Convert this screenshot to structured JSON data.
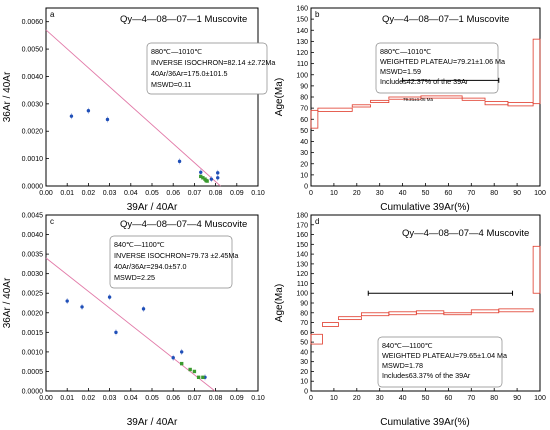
{
  "panels": [
    {
      "letter": "a",
      "type": "scatter",
      "title": "Qy—4—08—07—1 Muscovite",
      "xlabel": "39Ar / 40Ar",
      "ylabel": "36Ar / 40Ar",
      "xlim": [
        0,
        0.1
      ],
      "ylim": [
        0,
        0.0065
      ],
      "xticks": [
        "0.00",
        "0.01",
        "0.02",
        "0.03",
        "0.04",
        "0.05",
        "0.06",
        "0.07",
        "0.08",
        "0.09",
        "0.10"
      ],
      "yticks": [
        "0.0000",
        "0.0010",
        "0.0020",
        "0.0030",
        "0.0040",
        "0.0050",
        "0.0060"
      ],
      "ytick_values": [
        0,
        0.001,
        0.002,
        0.003,
        0.004,
        0.005,
        0.006
      ],
      "line": {
        "x0": 0,
        "y0": 0.0057,
        "x1": 0.0823,
        "y1": 0
      },
      "points_blue": [
        [
          0.012,
          0.00255
        ],
        [
          0.02,
          0.00275
        ],
        [
          0.029,
          0.00243
        ],
        [
          0.063,
          0.0009
        ],
        [
          0.073,
          0.0005
        ],
        [
          0.078,
          0.00025
        ],
        [
          0.081,
          0.0003
        ],
        [
          0.081,
          0.00048
        ]
      ],
      "points_green": [
        [
          0.073,
          0.00035
        ],
        [
          0.074,
          0.0003
        ],
        [
          0.075,
          0.00025
        ],
        [
          0.0755,
          0.0002
        ],
        [
          0.076,
          0.00018
        ]
      ],
      "inset_lines": [
        "880℃—1010℃",
        "INVERSE ISOCHRON=82.14 ±2.72Ma",
        "40Ar/36Ar=175.0±101.5",
        "MSWD=0.11"
      ]
    },
    {
      "letter": "b",
      "type": "step",
      "title": "Qy—4—08—07—1 Muscovite",
      "xlabel": "Cumulative 39Ar(%)",
      "ylabel": "Age(Ma)",
      "xlim": [
        0,
        100
      ],
      "ylim": [
        0,
        160
      ],
      "xticks": [
        "0",
        "10",
        "20",
        "30",
        "40",
        "50",
        "60",
        "70",
        "80",
        "90",
        "100"
      ],
      "yticks": [
        "0",
        "10",
        "20",
        "30",
        "40",
        "50",
        "60",
        "70",
        "80",
        "90",
        "100",
        "110",
        "120",
        "130",
        "140",
        "150",
        "160"
      ],
      "steps": [
        [
          0,
          3,
          52,
          68
        ],
        [
          3,
          18,
          67,
          70
        ],
        [
          18,
          26,
          71,
          73
        ],
        [
          26,
          34,
          75,
          77
        ],
        [
          34,
          48,
          78,
          80
        ],
        [
          48,
          66,
          79,
          81
        ],
        [
          66,
          76,
          77,
          79
        ],
        [
          76,
          86,
          73,
          76
        ],
        [
          86,
          97,
          72,
          75
        ],
        [
          97,
          100,
          74,
          132
        ]
      ],
      "plateau": {
        "x0": 40,
        "x1": 82,
        "y": 95,
        "label": "79.21±1.06 Ma"
      },
      "inset_lines": [
        "880℃—1010℃",
        "WEIGHTED PLATEAU=79.21±1.06 Ma",
        "MSWD=1.59",
        "Includes42.37% of the 39Ar"
      ]
    },
    {
      "letter": "c",
      "type": "scatter",
      "title": "Qy—4—08—07—4 Muscovite",
      "xlabel": "39Ar / 40Ar",
      "ylabel": "36Ar / 40Ar",
      "xlim": [
        0,
        0.1
      ],
      "ylim": [
        0,
        0.0045
      ],
      "xticks": [
        "0.00",
        "0.01",
        "0.02",
        "0.03",
        "0.04",
        "0.05",
        "0.06",
        "0.07",
        "0.08",
        "0.09",
        "0.10"
      ],
      "yticks": [
        "0.0000",
        "0.0005",
        "0.0010",
        "0.0015",
        "0.0020",
        "0.0025",
        "0.0030",
        "0.0035",
        "0.0040",
        "0.0045"
      ],
      "ytick_values": [
        0,
        0.0005,
        0.001,
        0.0015,
        0.002,
        0.0025,
        0.003,
        0.0035,
        0.004,
        0.0045
      ],
      "line": {
        "x0": 0,
        "y0": 0.0034,
        "x1": 0.0797,
        "y1": 0
      },
      "points_blue": [
        [
          0.01,
          0.0023
        ],
        [
          0.017,
          0.00215
        ],
        [
          0.03,
          0.0024
        ],
        [
          0.033,
          0.0015
        ],
        [
          0.046,
          0.0021
        ],
        [
          0.06,
          0.00085
        ],
        [
          0.064,
          0.001
        ],
        [
          0.075,
          0.00035
        ]
      ],
      "points_green": [
        [
          0.064,
          0.0007
        ],
        [
          0.068,
          0.00055
        ],
        [
          0.07,
          0.0005
        ],
        [
          0.072,
          0.00035
        ],
        [
          0.074,
          0.00035
        ]
      ],
      "inset_lines": [
        "840℃—1100℃",
        "INVERSE ISOCHRON=79.73 ±2.45Ma",
        "40Ar/36Ar=294.0±57.0",
        "MSWD=2.25"
      ]
    },
    {
      "letter": "d",
      "type": "step",
      "title": "Qy—4—08—07—4 Muscovite",
      "xlabel": "Cumulative 39Ar(%)",
      "ylabel": "Age(Ma)",
      "xlim": [
        0,
        100
      ],
      "ylim": [
        0,
        180
      ],
      "xticks": [
        "0",
        "10",
        "20",
        "30",
        "40",
        "50",
        "60",
        "70",
        "80",
        "90",
        "100"
      ],
      "yticks": [
        "0",
        "10",
        "20",
        "30",
        "40",
        "50",
        "60",
        "70",
        "80",
        "90",
        "100",
        "110",
        "120",
        "130",
        "140",
        "150",
        "160",
        "170",
        "180"
      ],
      "steps": [
        [
          0,
          5,
          48,
          58
        ],
        [
          5,
          12,
          66,
          70
        ],
        [
          12,
          22,
          73,
          76
        ],
        [
          22,
          34,
          77,
          80
        ],
        [
          34,
          46,
          78,
          81
        ],
        [
          46,
          58,
          79,
          82
        ],
        [
          58,
          70,
          78,
          80
        ],
        [
          70,
          82,
          80,
          83
        ],
        [
          82,
          97,
          81,
          84
        ],
        [
          97,
          100,
          100,
          148
        ]
      ],
      "plateau": {
        "x0": 25,
        "x1": 88,
        "y": 100,
        "label": ""
      },
      "inset_lines": [
        "840℃—1100℃",
        "WEIGHTED PLATEAU=79.65±1.04 Ma",
        "MSWD=1.78",
        "Includes63.37% of the 39Ar"
      ]
    }
  ]
}
